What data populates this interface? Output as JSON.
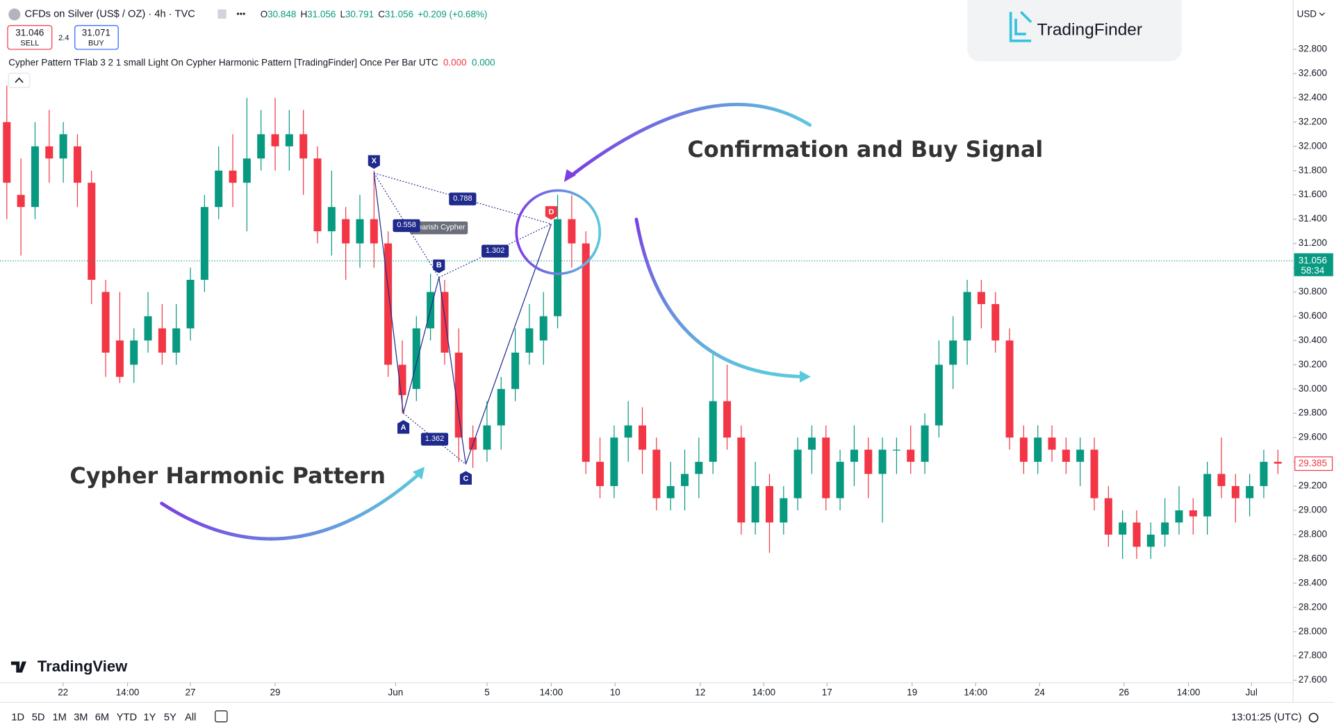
{
  "header": {
    "sell_price": "31.046",
    "sell": "SELL",
    "spread": "2.4",
    "buy_price": "31.071",
    "buy": "BUY",
    "currency": "USD",
    "brand": "TradingFinder",
    "watermark": "TradingView",
    "indicator": "Cypher Pattern TFlab 3 2 1 small Light On Cypher Harmonic Pattern [TradingFinder] Once Per Bar UTC",
    "indicator_values": [
      "0.000",
      "0.000"
    ],
    "range_buttons": [
      "1D",
      "5D",
      "1M",
      "3M",
      "6M",
      "YTD",
      "1Y",
      "5Y",
      "All"
    ],
    "clock": "13:01:25 (UTC)"
  },
  "chart_data": {
    "type": "candlestick",
    "title": "CFDs on Silver (US$ / OZ) · 4h · TVC",
    "ohlc": [
      {
        "label": "O",
        "value": 30.848
      },
      {
        "label": "H",
        "value": 31.056
      },
      {
        "label": "L",
        "value": 30.791
      },
      {
        "label": "C",
        "value": 31.056
      }
    ],
    "change": "+0.209 (+0.68%)",
    "colors": {
      "up": "#089981",
      "down": "#f23645",
      "pattern": "#1f2a8c",
      "pattern_end": "#f23645"
    },
    "open": [
      32.2,
      31.6,
      31.5,
      32.0,
      31.9,
      32.0,
      31.7,
      30.8,
      30.4,
      30.2,
      30.4,
      30.5,
      30.3,
      30.5,
      30.9,
      31.5,
      31.8,
      31.7,
      31.9,
      32.1,
      32.0,
      32.1,
      31.9,
      31.3,
      31.4,
      31.2,
      31.4,
      31.2,
      30.2,
      30.0,
      30.5,
      30.8,
      30.3,
      29.6,
      29.5,
      29.7,
      30.0,
      30.3,
      30.4,
      30.6,
      31.4,
      31.2,
      29.4,
      29.2,
      29.6,
      29.7,
      29.5,
      29.1,
      29.2,
      29.3,
      29.4,
      29.9,
      29.6,
      28.9,
      29.2,
      28.9,
      29.1,
      29.5,
      29.6,
      29.1,
      29.4,
      29.5,
      29.3,
      29.5,
      29.5,
      29.4,
      29.7,
      30.2,
      30.4,
      30.8,
      30.7,
      30.4,
      29.6,
      29.4,
      29.6,
      29.5,
      29.4,
      29.5,
      29.1,
      28.8,
      28.9,
      28.7,
      28.8,
      28.9,
      29.0,
      28.95,
      29.3,
      29.2,
      29.1,
      29.2,
      29.4
    ],
    "high": [
      32.5,
      31.9,
      32.2,
      32.3,
      32.2,
      32.1,
      31.8,
      30.9,
      30.8,
      30.5,
      30.8,
      30.7,
      30.7,
      31.0,
      31.6,
      32.0,
      32.1,
      32.4,
      32.3,
      32.4,
      32.3,
      32.3,
      32.0,
      31.8,
      31.5,
      31.6,
      31.8,
      31.3,
      30.4,
      30.6,
      30.95,
      30.9,
      30.5,
      29.7,
      29.9,
      30.1,
      30.5,
      30.7,
      30.8,
      31.6,
      31.6,
      31.3,
      29.6,
      29.7,
      29.9,
      29.85,
      29.6,
      29.4,
      29.5,
      29.6,
      30.3,
      30.2,
      29.7,
      29.4,
      29.3,
      29.2,
      29.6,
      29.7,
      29.7,
      29.5,
      29.7,
      29.6,
      29.6,
      29.6,
      29.7,
      29.8,
      30.4,
      30.6,
      30.9,
      30.9,
      30.8,
      30.5,
      29.7,
      29.7,
      29.7,
      29.6,
      29.6,
      29.6,
      29.2,
      29.0,
      29.0,
      28.9,
      29.1,
      29.2,
      29.1,
      29.4,
      29.6,
      29.3,
      29.3,
      29.5,
      29.5
    ],
    "low": [
      31.4,
      31.1,
      31.4,
      31.7,
      31.7,
      31.5,
      30.7,
      30.1,
      30.05,
      30.05,
      30.3,
      30.2,
      30.2,
      30.4,
      30.8,
      31.4,
      31.5,
      31.3,
      31.8,
      31.8,
      31.8,
      31.6,
      31.2,
      31.1,
      30.9,
      31.0,
      31.0,
      30.1,
      29.8,
      29.9,
      30.4,
      30.2,
      29.4,
      29.35,
      29.4,
      29.5,
      29.9,
      30.2,
      30.2,
      30.5,
      31.0,
      29.3,
      29.1,
      29.1,
      29.4,
      29.3,
      29.0,
      29.0,
      29.0,
      29.1,
      29.3,
      29.5,
      28.8,
      28.8,
      28.65,
      28.8,
      29.0,
      29.3,
      29.0,
      29.0,
      29.2,
      29.1,
      28.9,
      29.3,
      29.3,
      29.3,
      29.6,
      30.0,
      30.2,
      30.5,
      30.3,
      29.5,
      29.3,
      29.3,
      29.4,
      29.3,
      29.2,
      29.0,
      28.7,
      28.6,
      28.6,
      28.6,
      28.7,
      28.8,
      28.8,
      28.8,
      29.1,
      28.9,
      28.95,
      29.1,
      29.3
    ],
    "close": [
      31.7,
      31.5,
      32.0,
      31.9,
      32.1,
      31.7,
      30.9,
      30.3,
      30.1,
      30.4,
      30.6,
      30.3,
      30.5,
      30.9,
      31.5,
      31.8,
      31.7,
      31.9,
      32.1,
      32.0,
      32.1,
      31.9,
      31.3,
      31.5,
      31.2,
      31.4,
      31.2,
      30.2,
      29.95,
      30.5,
      30.8,
      30.3,
      29.6,
      29.5,
      29.7,
      30.0,
      30.3,
      30.5,
      30.6,
      31.4,
      31.2,
      29.4,
      29.2,
      29.6,
      29.7,
      29.5,
      29.1,
      29.2,
      29.3,
      29.4,
      29.9,
      29.6,
      28.9,
      29.2,
      28.9,
      29.1,
      29.5,
      29.6,
      29.1,
      29.4,
      29.5,
      29.3,
      29.5,
      29.5,
      29.4,
      29.7,
      30.2,
      30.4,
      30.8,
      30.7,
      30.4,
      29.6,
      29.4,
      29.6,
      29.5,
      29.4,
      29.5,
      29.1,
      28.8,
      28.9,
      28.7,
      28.8,
      28.9,
      29.0,
      28.95,
      29.3,
      29.2,
      29.1,
      29.2,
      29.4,
      29.385
    ],
    "xlim": [
      -0.482,
      91.08
    ],
    "xticks": [
      {
        "value": 3.98,
        "label": "22"
      },
      {
        "value": 8.55,
        "label": "14:00"
      },
      {
        "value": 13.0,
        "label": "27"
      },
      {
        "value": 19.0,
        "label": "29"
      },
      {
        "value": 27.53,
        "label": "Jun"
      },
      {
        "value": 34.0,
        "label": "5"
      },
      {
        "value": 38.55,
        "label": "14:00"
      },
      {
        "value": 43.07,
        "label": "10"
      },
      {
        "value": 49.1,
        "label": "12"
      },
      {
        "value": 53.6,
        "label": "14:00"
      },
      {
        "value": 58.07,
        "label": "17"
      },
      {
        "value": 64.1,
        "label": "19"
      },
      {
        "value": 68.6,
        "label": "14:00"
      },
      {
        "value": 73.13,
        "label": "24"
      },
      {
        "value": 79.1,
        "label": "26"
      },
      {
        "value": 83.67,
        "label": "14:00"
      },
      {
        "value": 88.13,
        "label": "Jul"
      }
    ],
    "ylim": [
      27.579,
      33.206
    ],
    "yticks": [
      {
        "value": 27.6,
        "label": "27.600"
      },
      {
        "value": 27.8,
        "label": "27.800"
      },
      {
        "value": 28.0,
        "label": "28.000"
      },
      {
        "value": 28.2,
        "label": "28.200"
      },
      {
        "value": 28.4,
        "label": "28.400"
      },
      {
        "value": 28.6,
        "label": "28.600"
      },
      {
        "value": 28.8,
        "label": "28.800"
      },
      {
        "value": 29.0,
        "label": "29.000"
      },
      {
        "value": 29.2,
        "label": "29.200"
      },
      {
        "value": 29.4,
        "label": "29.400"
      },
      {
        "value": 29.6,
        "label": "29.600"
      },
      {
        "value": 29.8,
        "label": "29.800"
      },
      {
        "value": 30.0,
        "label": "30.000"
      },
      {
        "value": 30.2,
        "label": "30.200"
      },
      {
        "value": 30.4,
        "label": "30.400"
      },
      {
        "value": 30.6,
        "label": "30.600"
      },
      {
        "value": 30.8,
        "label": "30.800"
      },
      {
        "value": 31.0,
        "label": "31.000"
      },
      {
        "value": 31.2,
        "label": "31.200"
      },
      {
        "value": 31.4,
        "label": "31.400"
      },
      {
        "value": 31.6,
        "label": "31.600"
      },
      {
        "value": 31.8,
        "label": "31.800"
      },
      {
        "value": 32.0,
        "label": "32.000"
      },
      {
        "value": 32.2,
        "label": "32.200"
      },
      {
        "value": 32.4,
        "label": "32.400"
      },
      {
        "value": 32.6,
        "label": "32.600"
      },
      {
        "value": 32.8,
        "label": "32.800"
      }
    ],
    "last_price": {
      "value": 31.056,
      "countdown": "58:34"
    },
    "marked_price": 29.385,
    "pattern": {
      "name": "Bearish Cypher",
      "points": [
        {
          "label": "X",
          "x": 26.0,
          "y": 31.78
        },
        {
          "label": "A",
          "x": 28.08,
          "y": 29.8
        },
        {
          "label": "B",
          "x": 30.6,
          "y": 30.92
        },
        {
          "label": "C",
          "x": 32.5,
          "y": 29.38
        },
        {
          "label": "D",
          "x": 38.55,
          "y": 31.36
        }
      ],
      "ratios": [
        {
          "value": 0.788,
          "between": [
            "X",
            "D"
          ]
        },
        {
          "value": 0.558,
          "between": [
            "X",
            "B"
          ]
        },
        {
          "value": 1.302,
          "between": [
            "B",
            "D"
          ]
        },
        {
          "value": 1.362,
          "between": [
            "A",
            "C"
          ]
        }
      ]
    },
    "annotations": [
      "Confirmation and Buy Signal",
      "Cypher Harmonic Pattern"
    ]
  }
}
